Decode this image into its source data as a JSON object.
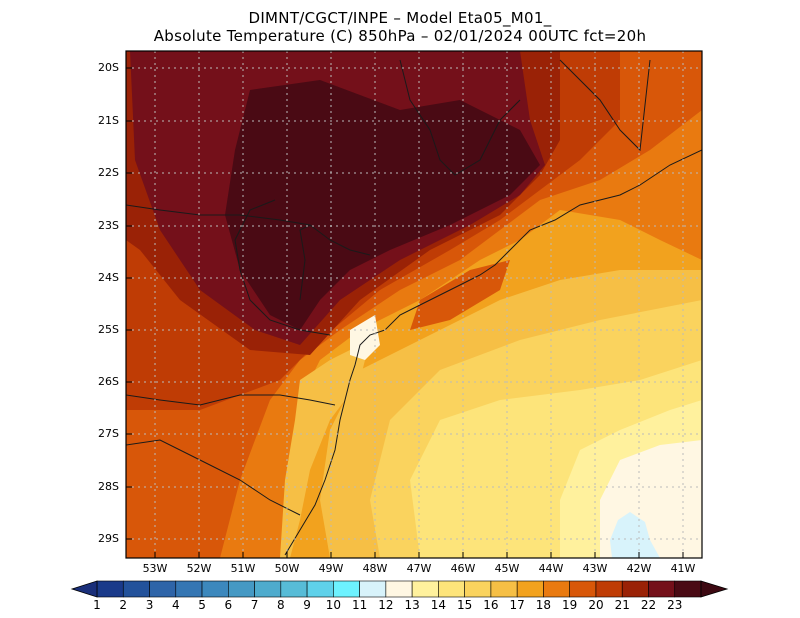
{
  "header": {
    "line1": "DIMNT/CGCT/INPE –  Model Eta05_M01_",
    "line2": "Absolute Temperature (C) 850hPa –  02/01/2024 00UTC fct=20h"
  },
  "map": {
    "lat_labels": [
      "20S",
      "21S",
      "22S",
      "23S",
      "24S",
      "25S",
      "26S",
      "27S",
      "28S",
      "29S"
    ],
    "lon_labels": [
      "53W",
      "52W",
      "51W",
      "50W",
      "49W",
      "48W",
      "47W",
      "46W",
      "45W",
      "44W",
      "43W",
      "42W",
      "41W"
    ]
  },
  "colorbar": {
    "labels": [
      "1",
      "2",
      "3",
      "4",
      "5",
      "6",
      "7",
      "8",
      "9",
      "10",
      "11",
      "12",
      "13",
      "14",
      "15",
      "16",
      "17",
      "18",
      "19",
      "20",
      "21",
      "22",
      "23"
    ],
    "colors": [
      "#1a3a8a",
      "#23529b",
      "#2e64a8",
      "#3576b3",
      "#3c88bd",
      "#4599c4",
      "#4eabcd",
      "#57bcd7",
      "#5fd1ea",
      "#6df2ff",
      "#d8f3fb",
      "#fff7e3",
      "#fff19d",
      "#fde47a",
      "#fad35e",
      "#f6bf45",
      "#f2a21e",
      "#e97a10",
      "#d85709",
      "#bf3c05",
      "#9a2206",
      "#74101a",
      "#4a0a14"
    ],
    "arrow_left_color": "#1a2f7a",
    "arrow_right_color": "#3d0912"
  }
}
